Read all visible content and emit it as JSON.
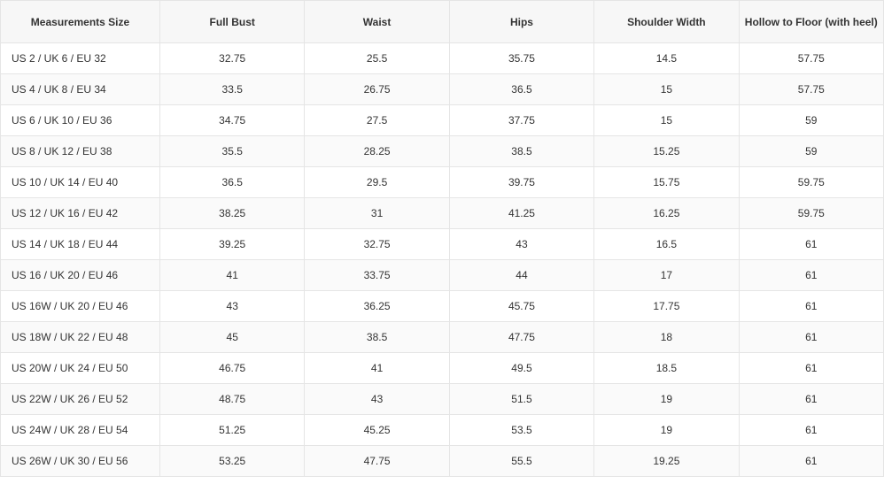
{
  "table": {
    "type": "table",
    "background_color": "#ffffff",
    "header_background": "#f7f7f7",
    "alt_row_background": "#fafafa",
    "border_color": "#e5e5e5",
    "text_color": "#333333",
    "font_size": 12,
    "header_font_weight": "bold",
    "columns": [
      "Measurements Size",
      "Full Bust",
      "Waist",
      "Hips",
      "Shoulder Width",
      "Hollow to Floor (with heel)"
    ],
    "rows": [
      [
        "US 2 / UK 6 / EU 32",
        "32.75",
        "25.5",
        "35.75",
        "14.5",
        "57.75"
      ],
      [
        "US 4 / UK 8 / EU 34",
        "33.5",
        "26.75",
        "36.5",
        "15",
        "57.75"
      ],
      [
        "US 6 / UK 10 / EU 36",
        "34.75",
        "27.5",
        "37.75",
        "15",
        "59"
      ],
      [
        "US 8 / UK 12 / EU 38",
        "35.5",
        "28.25",
        "38.5",
        "15.25",
        "59"
      ],
      [
        "US 10 / UK 14 / EU 40",
        "36.5",
        "29.5",
        "39.75",
        "15.75",
        "59.75"
      ],
      [
        "US 12 / UK 16 / EU 42",
        "38.25",
        "31",
        "41.25",
        "16.25",
        "59.75"
      ],
      [
        "US 14 / UK 18 / EU 44",
        "39.25",
        "32.75",
        "43",
        "16.5",
        "61"
      ],
      [
        "US 16 / UK 20 / EU 46",
        "41",
        "33.75",
        "44",
        "17",
        "61"
      ],
      [
        "US 16W / UK 20 / EU 46",
        "43",
        "36.25",
        "45.75",
        "17.75",
        "61"
      ],
      [
        "US 18W / UK 22 / EU 48",
        "45",
        "38.5",
        "47.75",
        "18",
        "61"
      ],
      [
        "US 20W / UK 24 / EU 50",
        "46.75",
        "41",
        "49.5",
        "18.5",
        "61"
      ],
      [
        "US 22W / UK 26 / EU 52",
        "48.75",
        "43",
        "51.5",
        "19",
        "61"
      ],
      [
        "US 24W / UK 28 / EU 54",
        "51.25",
        "45.25",
        "53.5",
        "19",
        "61"
      ],
      [
        "US 26W / UK 30 / EU 56",
        "53.25",
        "47.75",
        "55.5",
        "19.25",
        "61"
      ]
    ]
  }
}
